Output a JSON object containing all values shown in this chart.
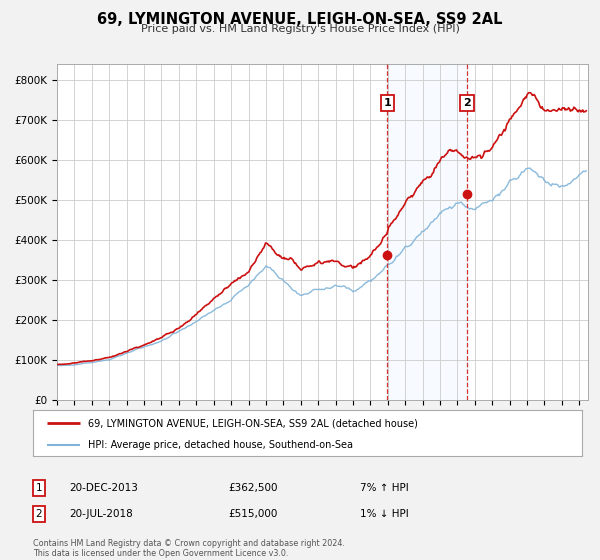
{
  "title": "69, LYMINGTON AVENUE, LEIGH-ON-SEA, SS9 2AL",
  "subtitle": "Price paid vs. HM Land Registry's House Price Index (HPI)",
  "bg_color": "#f2f2f2",
  "plot_bg_color": "#ffffff",
  "grid_color": "#cccccc",
  "hpi_color": "#7fb3d9",
  "hpi_fill_color": "#ddeeff",
  "price_color": "#cc1111",
  "marker1_date": 2013.97,
  "marker1_price": 362500,
  "marker2_date": 2018.55,
  "marker2_price": 515000,
  "xmin": 1995,
  "xmax": 2025.5,
  "ymin": 0,
  "ymax": 840000,
  "yticks": [
    0,
    100000,
    200000,
    300000,
    400000,
    500000,
    600000,
    700000,
    800000
  ],
  "ytick_labels": [
    "£0",
    "£100K",
    "£200K",
    "£300K",
    "£400K",
    "£500K",
    "£600K",
    "£700K",
    "£800K"
  ],
  "legend1_label": "69, LYMINGTON AVENUE, LEIGH-ON-SEA, SS9 2AL (detached house)",
  "legend2_label": "HPI: Average price, detached house, Southend-on-Sea",
  "annotation1_date": "20-DEC-2013",
  "annotation1_price": "£362,500",
  "annotation1_hpi": "7% ↑ HPI",
  "annotation2_date": "20-JUL-2018",
  "annotation2_price": "£515,000",
  "annotation2_hpi": "1% ↓ HPI",
  "footer1": "Contains HM Land Registry data © Crown copyright and database right 2024.",
  "footer2": "This data is licensed under the Open Government Licence v3.0."
}
